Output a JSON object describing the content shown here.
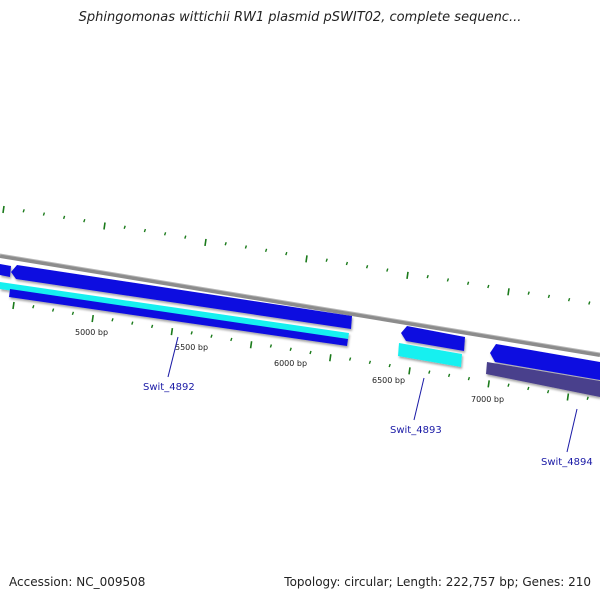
{
  "title": "Sphingomonas wittichii RW1 plasmid pSWIT02, complete sequenc...",
  "footer": {
    "accession": "Accession: NC_009508",
    "summary": "Topology: circular; Length: 222,757 bp; Genes: 210"
  },
  "colors": {
    "backbone": "#8c8c8c",
    "cds": "#1010e0",
    "cds_dark": "#0c0ca8",
    "gene_cyan": "#17f0f0",
    "pseudo": "#4a3f8c",
    "tick": "#1a7a1a",
    "label": "#1a1aa6"
  },
  "scale": {
    "tick_labels": [
      {
        "bp": 5000,
        "text": "5000 bp"
      },
      {
        "bp": 5500,
        "text": "5500 bp"
      },
      {
        "bp": 6000,
        "text": "6000 bp"
      },
      {
        "bp": 6500,
        "text": "6500 bp"
      },
      {
        "bp": 7000,
        "text": "7000 bp"
      }
    ]
  },
  "genes": [
    {
      "locus": "Swit_4892",
      "label": "Swit_4892"
    },
    {
      "locus": "Swit_4893",
      "label": "Swit_4893"
    },
    {
      "locus": "Swit_4894",
      "label": "Swit_4894"
    }
  ]
}
